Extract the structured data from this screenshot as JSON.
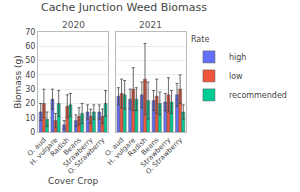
{
  "chart_data": [
    {
      "type": "bar",
      "title": "Cache Junction Weed Biomass",
      "subtitle": "2020",
      "xlabel": "Cover Crop",
      "ylabel": "Biomass (g)",
      "categories": [
        "O. aud",
        "H. vulgare",
        "Radish",
        "Beans",
        "Strawberry",
        "O. Strawberry"
      ],
      "series": [
        {
          "name": "high",
          "values": [
            14,
            23,
            5,
            8,
            14,
            14
          ],
          "errors": [
            6,
            7,
            3,
            4,
            5,
            5
          ]
        },
        {
          "name": "low",
          "values": [
            20,
            8,
            18,
            11,
            11,
            11
          ],
          "errors": [
            10,
            5,
            8,
            6,
            5,
            5
          ]
        },
        {
          "name": "recommended",
          "values": [
            9,
            20,
            19,
            13,
            14,
            20
          ],
          "errors": [
            5,
            9,
            8,
            7,
            5,
            9
          ]
        }
      ],
      "ylim": [
        0,
        70
      ],
      "yticks": [
        0,
        10,
        20,
        30,
        40,
        50,
        60,
        70
      ],
      "grid": true,
      "legend": "right",
      "legend_title": "Rate"
    },
    {
      "type": "bar",
      "subtitle": "2021",
      "categories": [
        "O. aud",
        "H. vulgare",
        "Radish",
        "Beans",
        "Strawberry",
        "O. Strawberry"
      ],
      "series": [
        {
          "name": "high",
          "values": [
            25,
            23,
            26,
            22,
            21,
            26
          ],
          "errors": [
            6,
            7,
            9,
            7,
            6,
            8
          ]
        },
        {
          "name": "low",
          "values": [
            27,
            30,
            37,
            25,
            26,
            30
          ],
          "errors": [
            10,
            15,
            25,
            12,
            12,
            10
          ]
        },
        {
          "name": "recommended",
          "values": [
            26,
            23,
            22,
            20,
            21,
            14
          ],
          "errors": [
            10,
            8,
            13,
            8,
            8,
            5
          ]
        }
      ],
      "ylim": [
        0,
        70
      ],
      "yticks": [
        0,
        10,
        20,
        30,
        40,
        50,
        60,
        70
      ],
      "grid": true,
      "tick_labels": "x"
    }
  ]
}
